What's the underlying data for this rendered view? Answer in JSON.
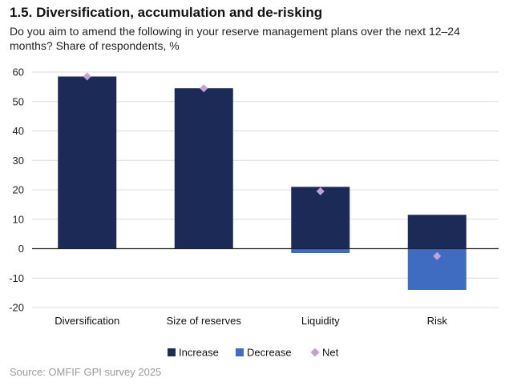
{
  "header": {
    "title": "1.5. Diversification, accumulation and de-risking",
    "subtitle": "Do you aim to amend the following in your reserve management plans over the next 12–24 months? Share of respondents, %"
  },
  "source": "Source: OMFIF GPI survey 2025",
  "colors": {
    "increase": "#1b2a57",
    "decrease": "#3f6cc0",
    "net": "#c3a3d6",
    "gridline": "#dcdcdc",
    "zero_line": "#222222"
  },
  "chart_data": {
    "type": "bar",
    "categories": [
      "Diversification",
      "Size of reserves",
      "Liquidity",
      "Risk"
    ],
    "series": [
      {
        "name": "Increase",
        "kind": "bar",
        "values": [
          58.5,
          54.5,
          21,
          11.5
        ]
      },
      {
        "name": "Decrease",
        "kind": "bar",
        "values": [
          0,
          0,
          -1.5,
          -14
        ]
      },
      {
        "name": "Net",
        "kind": "marker",
        "values": [
          58.5,
          54.5,
          19.5,
          -2.5
        ]
      }
    ],
    "ylim": [
      -20,
      60
    ],
    "yticks": [
      60,
      50,
      40,
      30,
      20,
      10,
      0,
      -10,
      -20
    ],
    "xlabel": "",
    "ylabel": "",
    "legend": [
      "Increase",
      "Decrease",
      "Net"
    ],
    "legend_position": "bottom-center"
  }
}
